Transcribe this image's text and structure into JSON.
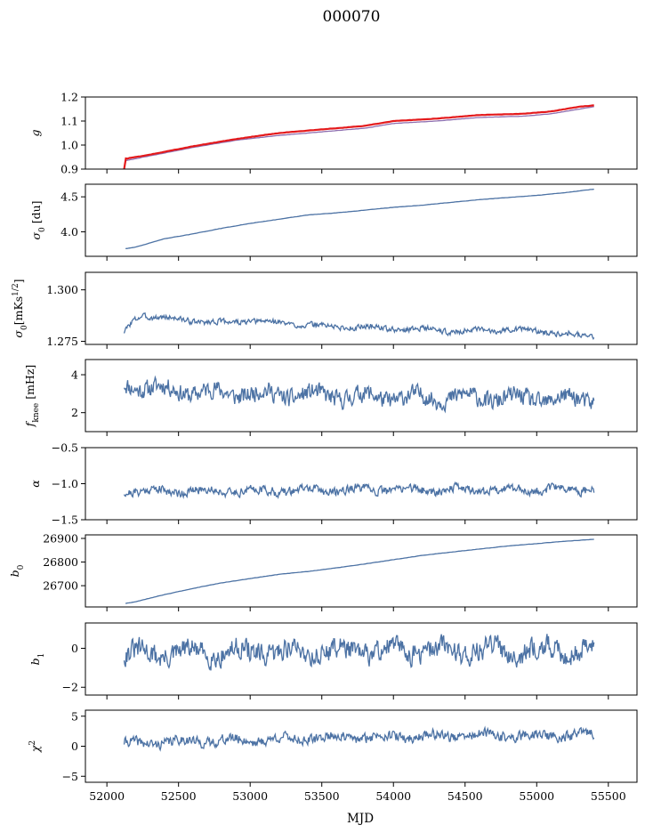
{
  "figure": {
    "title": "000070",
    "xlabel": "MJD"
  },
  "colors": {
    "series": "#4c72a4",
    "g_primary": "#e41a1c",
    "g_secondary": "#8e6fb0",
    "axis": "#000000"
  },
  "chart_data": [
    {
      "type": "line",
      "ylabel": "g",
      "ylim": [
        0.9,
        1.2
      ],
      "yticks": [
        "0.9",
        "1.0",
        "1.1",
        "1.2"
      ],
      "yticks_values": [
        0.9,
        1.0,
        1.1,
        1.2
      ],
      "xlim": [
        51850,
        55700
      ],
      "series": [
        {
          "color": "#8e6fb0",
          "x": [
            52130,
            52300,
            52600,
            52900,
            53200,
            53500,
            53800,
            54000,
            54300,
            54600,
            54900,
            55100,
            55300,
            55400
          ],
          "y": [
            0.935,
            0.955,
            0.99,
            1.02,
            1.04,
            1.055,
            1.07,
            1.09,
            1.1,
            1.115,
            1.12,
            1.13,
            1.15,
            1.16
          ]
        },
        {
          "color": "#e41a1c",
          "x": [
            52120,
            52130,
            52135,
            52150,
            52300,
            52600,
            52900,
            53200,
            53500,
            53800,
            54000,
            54300,
            54600,
            54900,
            55100,
            55300,
            55400
          ],
          "y": [
            0.9,
            0.95,
            0.94,
            0.945,
            0.96,
            0.995,
            1.025,
            1.05,
            1.065,
            1.08,
            1.1,
            1.11,
            1.125,
            1.13,
            1.14,
            1.16,
            1.165
          ]
        }
      ]
    },
    {
      "type": "line",
      "ylabel": "σ0 [du]",
      "ylim": [
        3.65,
        4.68
      ],
      "yticks": [
        "4.0",
        "4.5"
      ],
      "yticks_values": [
        4.0,
        4.5
      ],
      "xlim": [
        51850,
        55700
      ],
      "series": [
        {
          "color": "#4c72a4",
          "x": [
            52130,
            52200,
            52300,
            52400,
            52600,
            52800,
            53000,
            53200,
            53400,
            53600,
            53800,
            54000,
            54200,
            54400,
            54600,
            54800,
            55000,
            55200,
            55400
          ],
          "y": [
            3.76,
            3.78,
            3.84,
            3.9,
            3.97,
            4.05,
            4.12,
            4.18,
            4.24,
            4.27,
            4.31,
            4.35,
            4.38,
            4.42,
            4.46,
            4.49,
            4.52,
            4.56,
            4.61
          ]
        }
      ]
    },
    {
      "type": "line",
      "ylabel": "σ0[mKs^1/2]",
      "ylim": [
        1.2735,
        1.3085
      ],
      "yticks": [
        "1.275",
        "1.300"
      ],
      "yticks_values": [
        1.275,
        1.3
      ],
      "xlim": [
        51850,
        55700
      ],
      "noise_seed": 3,
      "noise_amp": 0.0012,
      "series": [
        {
          "color": "#4c72a4",
          "x": [
            52120,
            52180,
            52250,
            52300,
            52450,
            52600,
            52800,
            53000,
            53200,
            53400,
            53600,
            53800,
            54000,
            54200,
            54400,
            54600,
            54800,
            55000,
            55200,
            55400
          ],
          "y": [
            1.279,
            1.285,
            1.288,
            1.287,
            1.286,
            1.285,
            1.284,
            1.285,
            1.284,
            1.283,
            1.282,
            1.282,
            1.281,
            1.281,
            1.28,
            1.28,
            1.281,
            1.28,
            1.279,
            1.277
          ]
        }
      ]
    },
    {
      "type": "line",
      "ylabel": "fknee [mHz]",
      "ylim": [
        1.0,
        4.8
      ],
      "yticks": [
        "2",
        "4"
      ],
      "yticks_values": [
        2,
        4
      ],
      "xlim": [
        51850,
        55700
      ],
      "noise_seed": 11,
      "noise_amp": 0.42,
      "series": [
        {
          "color": "#4c72a4",
          "x": [
            52120,
            52300,
            52600,
            53000,
            53500,
            54000,
            54500,
            55000,
            55400
          ],
          "y": [
            3.5,
            3.3,
            3.1,
            3.0,
            2.9,
            2.8,
            2.8,
            2.7,
            2.7
          ]
        }
      ]
    },
    {
      "type": "line",
      "ylabel": "α",
      "ylim": [
        -1.5,
        -0.5
      ],
      "yticks": [
        "−1.5",
        "−1.0",
        "−0.5"
      ],
      "yticks_values": [
        -1.5,
        -1.0,
        -0.5
      ],
      "xlim": [
        51850,
        55700
      ],
      "noise_seed": 21,
      "noise_amp": 0.055,
      "series": [
        {
          "color": "#4c72a4",
          "x": [
            52120,
            53000,
            54000,
            55000,
            55400
          ],
          "y": [
            -1.1,
            -1.1,
            -1.08,
            -1.08,
            -1.08
          ]
        }
      ]
    },
    {
      "type": "line",
      "ylabel": "b0",
      "ylim": [
        26610,
        26915
      ],
      "yticks": [
        "26700",
        "26800",
        "26900"
      ],
      "yticks_values": [
        26700,
        26800,
        26900
      ],
      "xlim": [
        51850,
        55700
      ],
      "series": [
        {
          "color": "#4c72a4",
          "x": [
            52130,
            52200,
            52400,
            52600,
            52800,
            53000,
            53200,
            53400,
            53600,
            53800,
            54000,
            54200,
            54400,
            54600,
            54800,
            55000,
            55200,
            55400
          ],
          "y": [
            26625,
            26632,
            26662,
            26688,
            26712,
            26730,
            26748,
            26760,
            26775,
            26792,
            26810,
            26828,
            26842,
            26855,
            26868,
            26878,
            26888,
            26896
          ]
        }
      ]
    },
    {
      "type": "line",
      "ylabel": "b1",
      "ylim": [
        -2.4,
        1.3
      ],
      "yticks": [
        "−2",
        "0"
      ],
      "yticks_values": [
        -2,
        0
      ],
      "xlim": [
        51850,
        55700
      ],
      "noise_seed": 31,
      "noise_amp": 0.5,
      "series": [
        {
          "color": "#4c72a4",
          "x": [
            52120,
            53000,
            54000,
            55000,
            55400
          ],
          "y": [
            -0.3,
            -0.2,
            -0.1,
            -0.1,
            -0.1
          ]
        }
      ]
    },
    {
      "type": "line",
      "ylabel": "χ2",
      "ylim": [
        -6,
        6
      ],
      "yticks": [
        "−5",
        "0",
        "5"
      ],
      "yticks_values": [
        -5,
        0,
        5
      ],
      "xlim": [
        51850,
        55700
      ],
      "xticks": [
        "52000",
        "52500",
        "53000",
        "53500",
        "54000",
        "54500",
        "55000",
        "55500"
      ],
      "xticks_values": [
        52000,
        52500,
        53000,
        53500,
        54000,
        54500,
        55000,
        55500
      ],
      "noise_seed": 41,
      "noise_amp": 0.75,
      "series": [
        {
          "color": "#4c72a4",
          "x": [
            52120,
            52500,
            53000,
            53500,
            54000,
            54500,
            55000,
            55400
          ],
          "y": [
            0.4,
            0.8,
            1.0,
            1.4,
            1.6,
            1.8,
            1.7,
            1.9
          ]
        }
      ]
    }
  ]
}
